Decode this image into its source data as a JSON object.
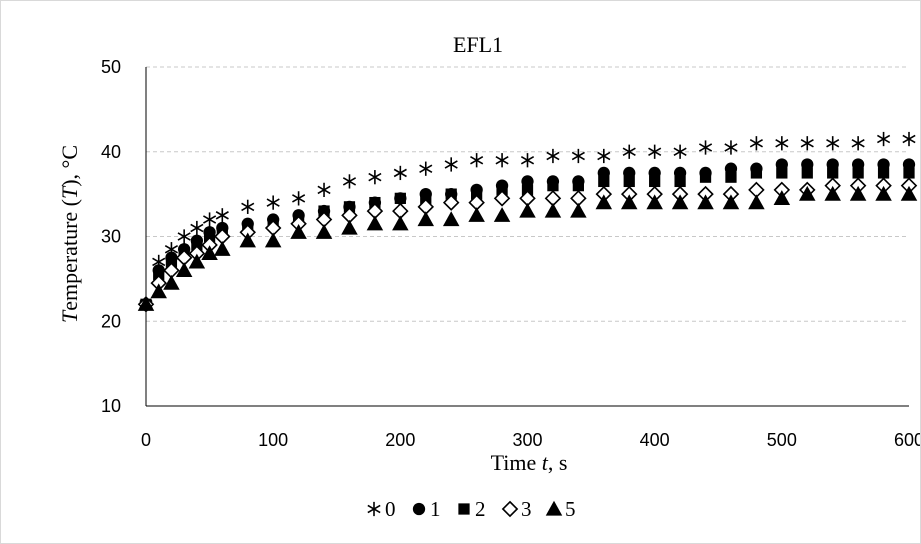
{
  "chart_data": {
    "type": "scatter",
    "title": "EFL1",
    "xlabel": "Time t, s",
    "ylabel": "Temperature (T), °C",
    "xlim": [
      0,
      600
    ],
    "ylim": [
      10,
      50
    ],
    "x_ticks": [
      0,
      100,
      200,
      300,
      400,
      500,
      600
    ],
    "y_ticks": [
      10,
      20,
      30,
      40,
      50
    ],
    "grid": "horizontal dashed",
    "legend_position": "bottom",
    "x": [
      0,
      10,
      20,
      30,
      40,
      50,
      60,
      80,
      100,
      120,
      140,
      160,
      180,
      200,
      220,
      240,
      260,
      280,
      300,
      320,
      340,
      360,
      380,
      400,
      420,
      440,
      460,
      480,
      500,
      520,
      540,
      560,
      580,
      600
    ],
    "series": [
      {
        "name": "0",
        "marker": "asterisk",
        "values": [
          22,
          27,
          28.5,
          30,
          31,
          32,
          32.5,
          33.5,
          34,
          34.5,
          35.5,
          36.5,
          37,
          37.5,
          38,
          38.5,
          39,
          39,
          39,
          39.5,
          39.5,
          39.5,
          40,
          40,
          40,
          40.5,
          40.5,
          41,
          41,
          41,
          41,
          41,
          41.5,
          41.5
        ]
      },
      {
        "name": "1",
        "marker": "circle",
        "values": [
          22,
          26,
          27.5,
          28.5,
          29.5,
          30.5,
          31,
          31.5,
          32,
          32.5,
          33,
          33.5,
          34,
          34.5,
          35,
          35,
          35.5,
          36,
          36.5,
          36.5,
          36.5,
          37.5,
          37.5,
          37.5,
          37.5,
          37.5,
          38,
          38,
          38.5,
          38.5,
          38.5,
          38.5,
          38.5,
          38.5
        ]
      },
      {
        "name": "2",
        "marker": "square",
        "values": [
          22,
          25.5,
          27,
          28,
          29,
          30,
          30.5,
          31,
          31.5,
          32,
          33,
          33.5,
          34,
          34.5,
          34.5,
          35,
          35,
          35.5,
          35.5,
          36,
          36,
          36.5,
          36.5,
          36.5,
          36.5,
          37,
          37,
          37.5,
          37.5,
          37.5,
          37.5,
          37.5,
          37.5,
          37.5
        ]
      },
      {
        "name": "3",
        "marker": "diamond-open",
        "values": [
          22,
          24.5,
          26,
          27.5,
          28,
          29,
          30,
          30.5,
          31,
          31.5,
          32,
          32.5,
          33,
          33,
          33.5,
          34,
          34,
          34.5,
          34.5,
          34.5,
          34.5,
          35,
          35,
          35,
          35,
          35,
          35,
          35.5,
          35.5,
          35.5,
          36,
          36,
          36,
          36
        ]
      },
      {
        "name": "5",
        "marker": "triangle",
        "values": [
          22,
          23.5,
          24.5,
          26,
          27,
          28,
          28.5,
          29.5,
          29.5,
          30.5,
          30.5,
          31,
          31.5,
          31.5,
          32,
          32,
          32.5,
          32.5,
          33,
          33,
          33,
          34,
          34,
          34,
          34,
          34,
          34,
          34,
          34.5,
          35,
          35,
          35,
          35,
          35
        ]
      }
    ]
  }
}
